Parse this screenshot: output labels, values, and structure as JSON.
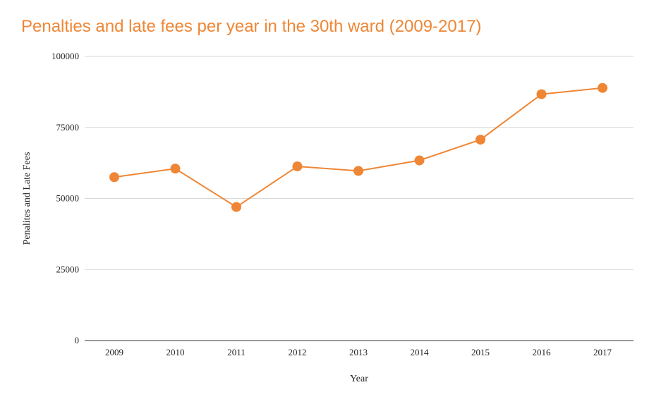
{
  "colors": {
    "accent": "#ef8635",
    "grid": "#d9d9d9",
    "axis": "#333333"
  },
  "chart_data": {
    "type": "line",
    "title": "Penalties and late fees per year in the 30th ward (2009-2017)",
    "xlabel": "Year",
    "ylabel": "Penalites and Late Fees",
    "categories": [
      "2009",
      "2010",
      "2011",
      "2012",
      "2013",
      "2014",
      "2015",
      "2016",
      "2017"
    ],
    "series": [
      {
        "values": [
          57500,
          60500,
          47000,
          61300,
          59700,
          63400,
          70700,
          86700,
          88900
        ]
      }
    ],
    "ylim": [
      0,
      100000
    ],
    "yticks": [
      "0",
      "25000",
      "50000",
      "75000",
      "100000"
    ],
    "grid": true,
    "legend": "none"
  }
}
